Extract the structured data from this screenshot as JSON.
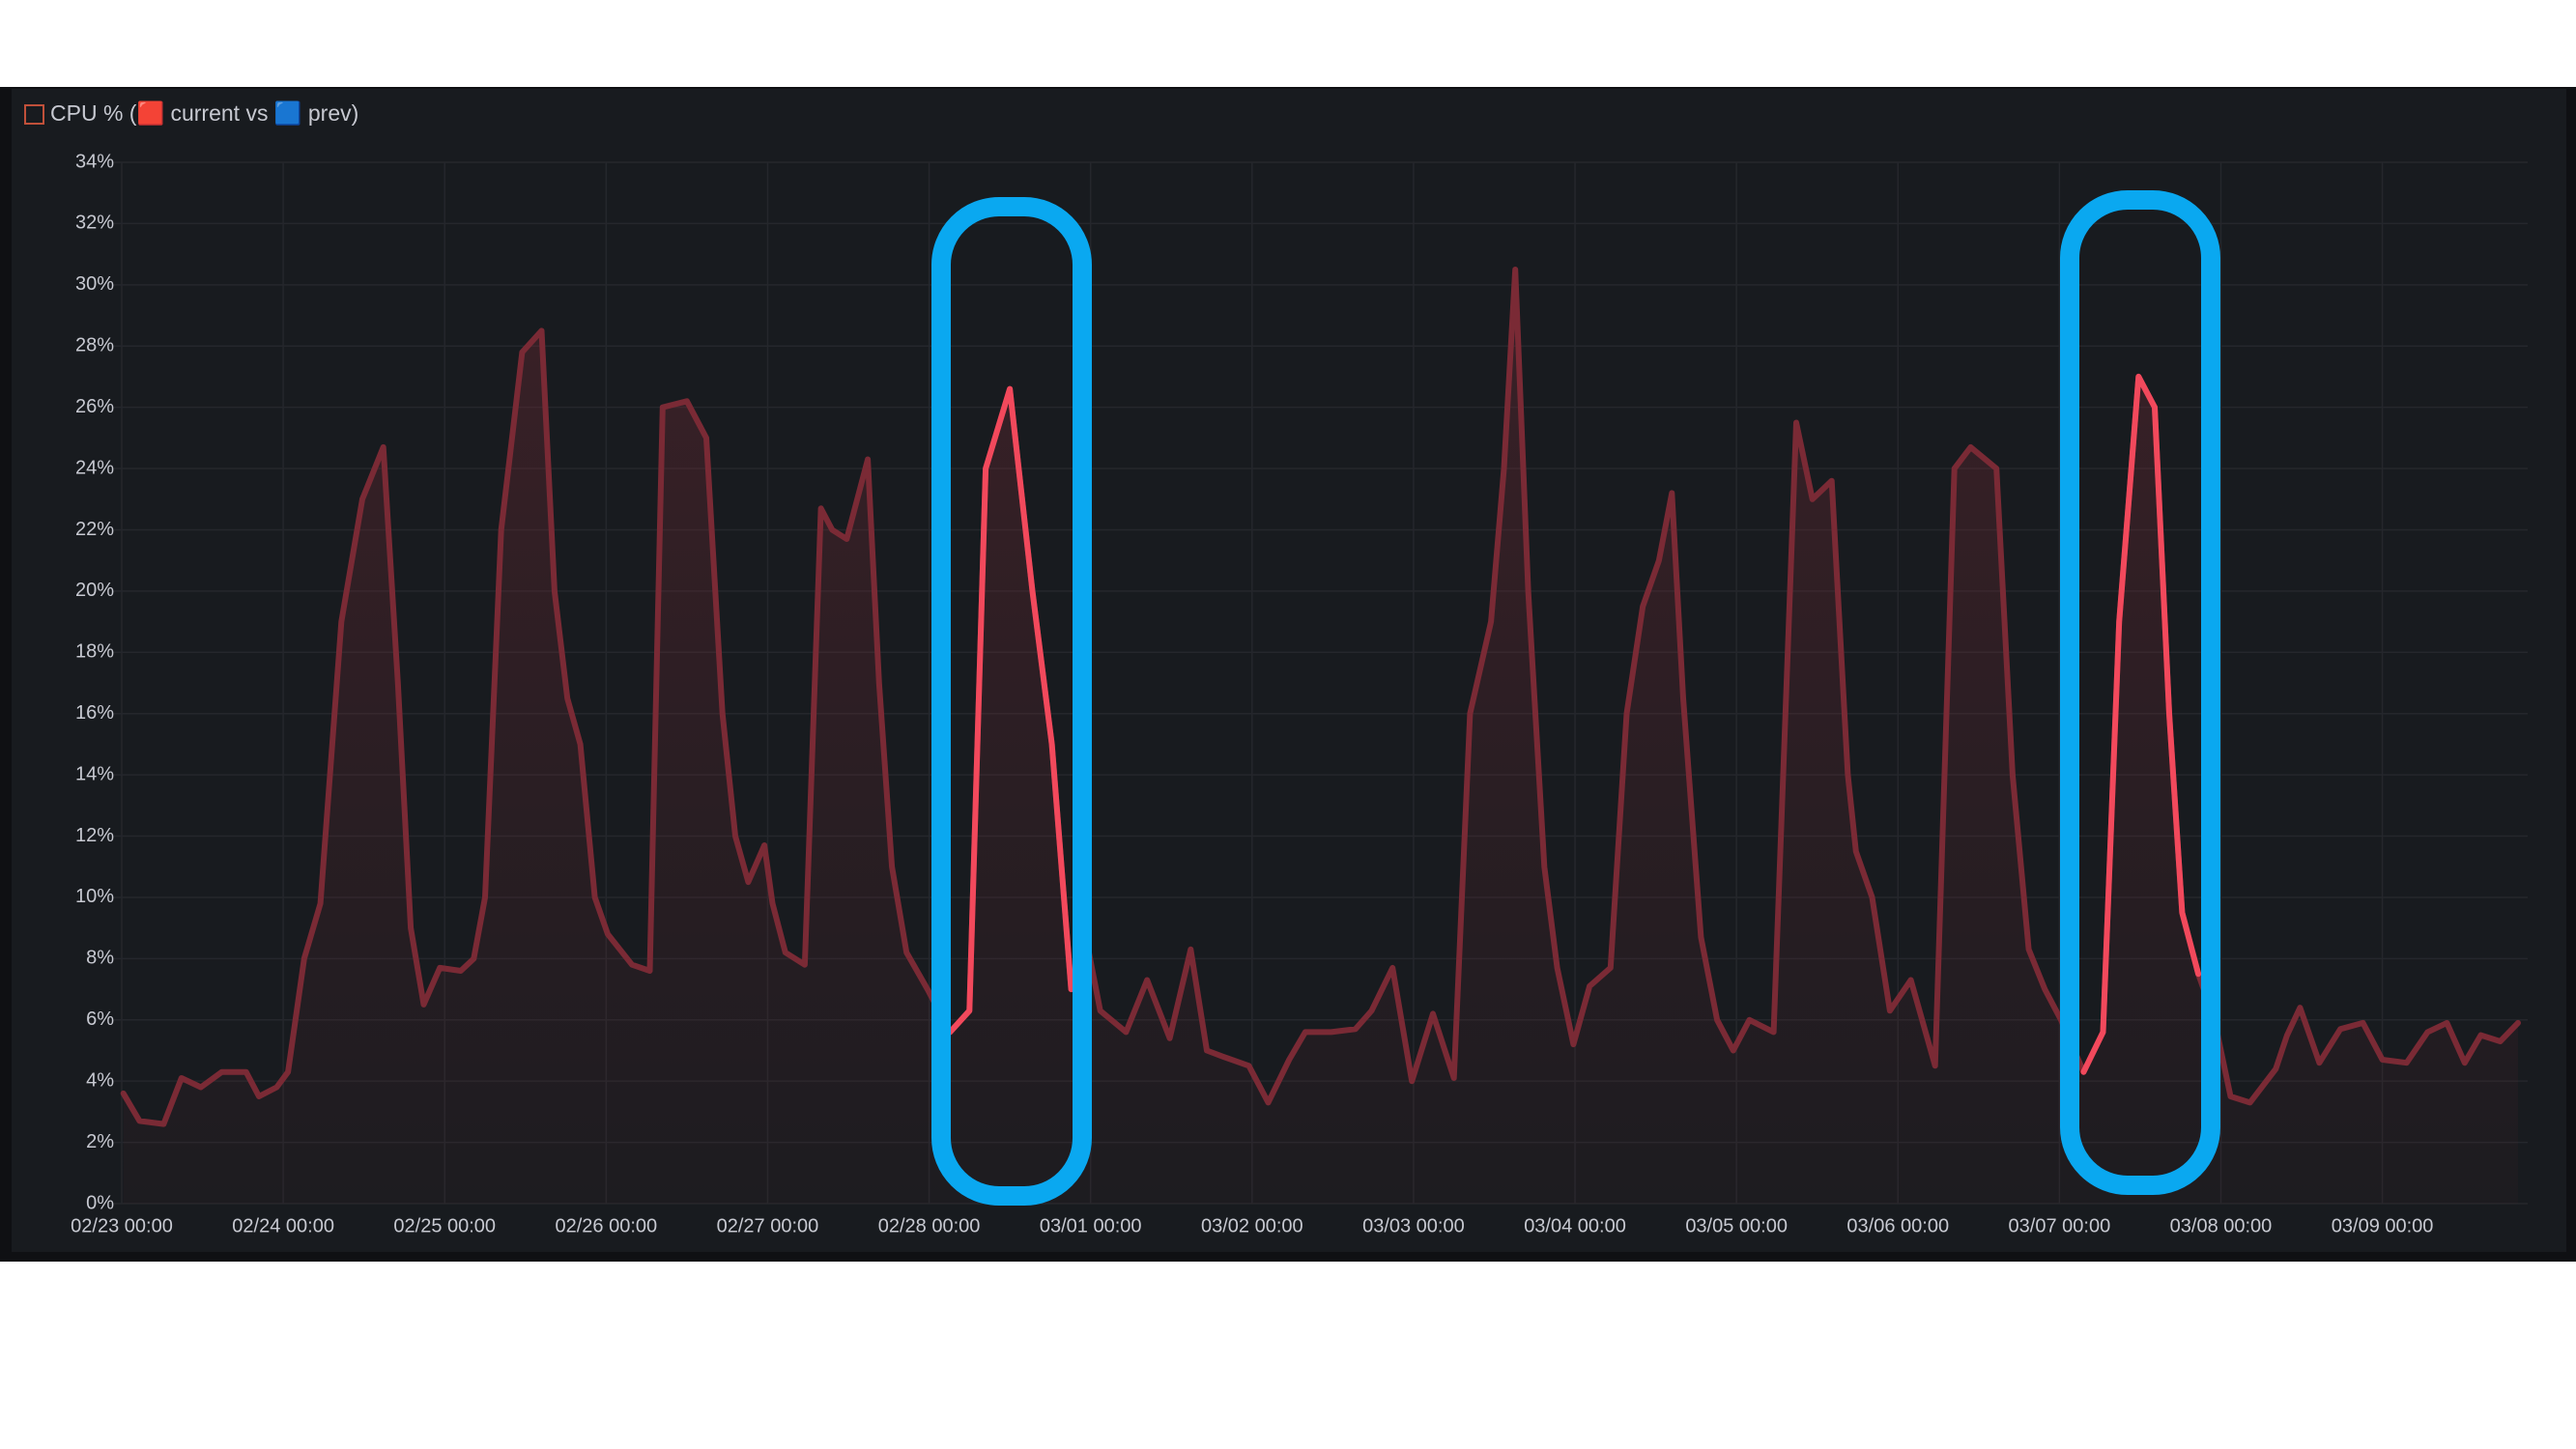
{
  "chart_data": {
    "type": "line",
    "title": "CPU % (🟥 current vs 🟦 prev)",
    "x": [
      0.01,
      0.11,
      0.26,
      0.37,
      0.49,
      0.62,
      0.77,
      0.85,
      0.96,
      1.03,
      1.13,
      1.23,
      1.36,
      1.49,
      1.62,
      1.71,
      1.79,
      1.87,
      1.97,
      2.1,
      2.18,
      2.25,
      2.35,
      2.48,
      2.6,
      2.68,
      2.76,
      2.84,
      2.93,
      3.01,
      3.16,
      3.27,
      3.35,
      3.5,
      3.62,
      3.72,
      3.8,
      3.88,
      3.98,
      4.03,
      4.11,
      4.23,
      4.33,
      4.4,
      4.49,
      4.62,
      4.69,
      4.77,
      4.86,
      4.99,
      5.13,
      5.25,
      5.35,
      5.5,
      5.64,
      5.76,
      5.88,
      5.96,
      6.06,
      6.22,
      6.35,
      6.49,
      6.62,
      6.72,
      6.82,
      6.98,
      7.1,
      7.23,
      7.33,
      7.49,
      7.64,
      7.74,
      7.87,
      7.99,
      8.12,
      8.25,
      8.35,
      8.48,
      8.56,
      8.63,
      8.71,
      8.81,
      8.89,
      8.99,
      9.09,
      9.22,
      9.32,
      9.42,
      9.52,
      9.6,
      9.67,
      9.78,
      9.88,
      9.98,
      10.08,
      10.23,
      10.37,
      10.47,
      10.59,
      10.69,
      10.74,
      10.84,
      10.95,
      11.08,
      11.23,
      11.35,
      11.45,
      11.61,
      11.71,
      11.81,
      11.91,
      12.01,
      12.15,
      12.27,
      12.37,
      12.49,
      12.59,
      12.68,
      12.76,
      12.86,
      12.96,
      13.06,
      13.18,
      13.34,
      13.41,
      13.49,
      13.61,
      13.74,
      13.88,
      14.0,
      14.15,
      14.28,
      14.4,
      14.51,
      14.61,
      14.73,
      14.84
    ],
    "series": [
      {
        "color": "#7a2a35",
        "values": [
          3.6,
          2.7,
          2.6,
          4.1,
          3.8,
          4.3,
          4.3,
          3.5,
          3.8,
          4.3,
          8.0,
          9.8,
          19,
          23,
          24.7,
          17,
          9,
          6.5,
          7.7,
          7.6,
          8,
          10,
          22,
          27.8,
          28.5,
          20,
          16.5,
          15,
          10,
          8.8,
          7.8,
          7.6,
          26,
          26.2,
          25,
          16,
          12,
          10.5,
          11.7,
          9.8,
          8.2,
          7.8,
          22.7,
          22,
          21.7,
          24.3,
          17,
          11,
          8.2,
          7,
          5.6,
          6.3,
          24,
          26.6,
          20,
          15,
          7,
          9,
          6.3,
          5.6,
          7.3,
          5.4,
          8.3,
          5,
          4.8,
          4.5,
          3.3,
          4.7,
          5.6,
          5.6,
          5.7,
          6.3,
          7.7,
          4,
          6.2,
          4.1,
          16,
          19,
          24,
          30.5,
          20,
          11,
          7.7,
          5.2,
          7.1,
          7.7,
          16,
          19.5,
          21,
          23.2,
          16.5,
          8.7,
          6,
          5,
          6,
          5.6,
          25.5,
          23,
          23.6,
          14,
          11.5,
          10,
          6.3,
          7.3,
          4.5,
          24,
          24.7,
          24,
          14,
          8.3,
          7,
          6,
          4.3,
          5.6,
          19,
          27,
          26,
          16,
          9.5,
          7.5,
          6,
          3.5,
          3.3,
          4.4,
          5.5,
          6.4,
          4.6,
          5.7,
          5.9,
          4.7,
          4.6,
          5.6,
          5.9,
          4.6,
          5.5,
          5.3,
          5.9
        ]
      },
      {
        "color": "#f2495c",
        "values": [
          null,
          null,
          null,
          null,
          null,
          null,
          null,
          null,
          null,
          null,
          null,
          null,
          null,
          null,
          null,
          null,
          null,
          null,
          null,
          null,
          null,
          null,
          null,
          null,
          null,
          null,
          null,
          null,
          null,
          null,
          null,
          null,
          null,
          null,
          null,
          null,
          null,
          null,
          null,
          null,
          null,
          null,
          null,
          null,
          null,
          null,
          null,
          null,
          null,
          null,
          5.6,
          6.3,
          24,
          26.6,
          20,
          15,
          7,
          9,
          null,
          null,
          null,
          null,
          null,
          null,
          null,
          null,
          null,
          null,
          null,
          null,
          null,
          null,
          null,
          null,
          null,
          null,
          null,
          null,
          null,
          null,
          null,
          null,
          null,
          null,
          null,
          null,
          null,
          null,
          null,
          null,
          null,
          null,
          null,
          null,
          null,
          null,
          null,
          null,
          null,
          null,
          null,
          null,
          null,
          null,
          null,
          null,
          null,
          null,
          null,
          null,
          null,
          null,
          4.3,
          5.6,
          19,
          27,
          26,
          16,
          9.5,
          7.5,
          null,
          null,
          null,
          null,
          null,
          null,
          null,
          null,
          null,
          null,
          null,
          null,
          null,
          null,
          null,
          null,
          null
        ]
      }
    ],
    "xlim": [
      0,
      14.9
    ],
    "xticks": [
      {
        "value": 0,
        "label": "02/23 00:00"
      },
      {
        "value": 1,
        "label": "02/24 00:00"
      },
      {
        "value": 2,
        "label": "02/25 00:00"
      },
      {
        "value": 3,
        "label": "02/26 00:00"
      },
      {
        "value": 4,
        "label": "02/27 00:00"
      },
      {
        "value": 5,
        "label": "02/28 00:00"
      },
      {
        "value": 6,
        "label": "03/01 00:00"
      },
      {
        "value": 7,
        "label": "03/02 00:00"
      },
      {
        "value": 8,
        "label": "03/03 00:00"
      },
      {
        "value": 9,
        "label": "03/04 00:00"
      },
      {
        "value": 10,
        "label": "03/05 00:00"
      },
      {
        "value": 11,
        "label": "03/06 00:00"
      },
      {
        "value": 12,
        "label": "03/07 00:00"
      },
      {
        "value": 13,
        "label": "03/08 00:00"
      },
      {
        "value": 14,
        "label": "03/09 00:00"
      }
    ],
    "ylim": [
      0,
      34
    ],
    "yticks": [
      {
        "value": 0,
        "label": "0%"
      },
      {
        "value": 2,
        "label": "2%"
      },
      {
        "value": 4,
        "label": "4%"
      },
      {
        "value": 6,
        "label": "6%"
      },
      {
        "value": 8,
        "label": "8%"
      },
      {
        "value": 10,
        "label": "10%"
      },
      {
        "value": 12,
        "label": "12%"
      },
      {
        "value": 14,
        "label": "14%"
      },
      {
        "value": 16,
        "label": "16%"
      },
      {
        "value": 18,
        "label": "18%"
      },
      {
        "value": 20,
        "label": "20%"
      },
      {
        "value": 22,
        "label": "22%"
      },
      {
        "value": 24,
        "label": "24%"
      },
      {
        "value": 26,
        "label": "26%"
      },
      {
        "value": 28,
        "label": "28%"
      },
      {
        "value": 30,
        "label": "30%"
      },
      {
        "value": 32,
        "label": "32%"
      },
      {
        "value": 34,
        "label": "34%"
      }
    ],
    "grid": true
  }
}
